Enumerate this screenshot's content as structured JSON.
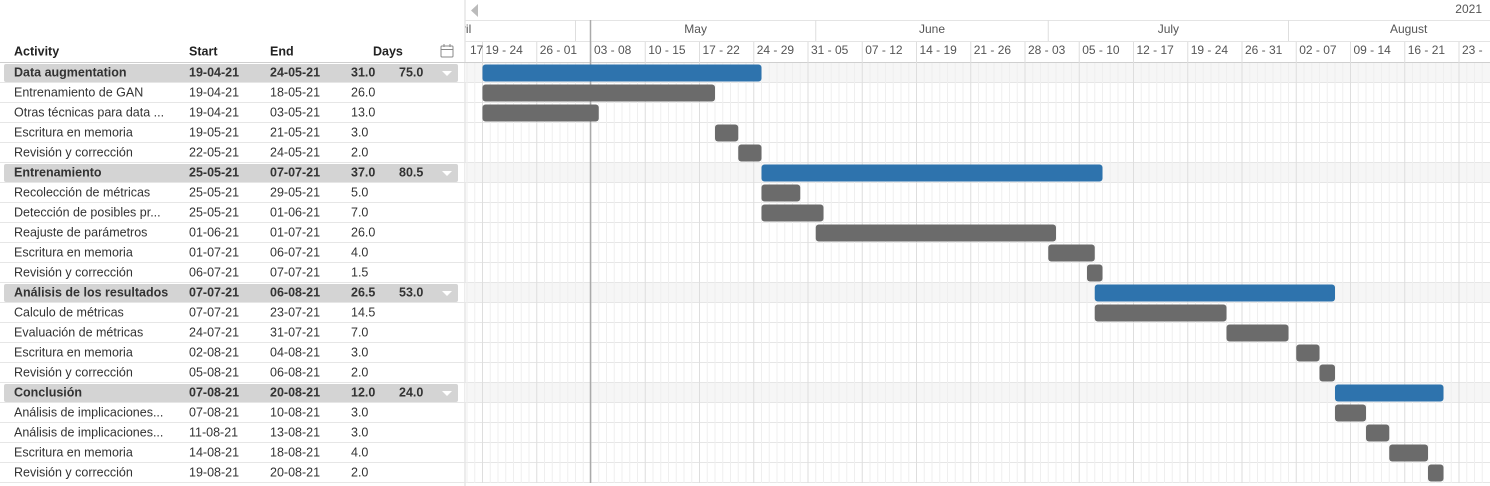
{
  "header": {
    "year": "2021",
    "columns": {
      "activity": "Activity",
      "start": "Start",
      "end": "End",
      "days": "Days"
    },
    "months": [
      "April",
      "May",
      "June",
      "July",
      "August"
    ],
    "weeks": [
      "17",
      "19 - 24",
      "26 - 01",
      "03 - 08",
      "10 - 15",
      "17 - 22",
      "24 - 29",
      "31 - 05",
      "07 - 12",
      "14 - 19",
      "21 - 26",
      "28 - 03",
      "05 - 10",
      "12 - 17",
      "19 - 24",
      "26 - 31",
      "02 - 07",
      "09 - 14",
      "16 - 21",
      "23 -"
    ]
  },
  "groups": [
    {
      "name": "Data augmentation",
      "start": "19-04-21",
      "end": "24-05-21",
      "days": "31.0",
      "total": "75.0",
      "tasks": [
        {
          "name": "Entrenamiento de GAN",
          "start": "19-04-21",
          "end": "18-05-21",
          "days": "26.0"
        },
        {
          "name": "Otras técnicas para data ...",
          "start": "19-04-21",
          "end": "03-05-21",
          "days": "13.0"
        },
        {
          "name": "Escritura en memoria",
          "start": "19-05-21",
          "end": "21-05-21",
          "days": "3.0"
        },
        {
          "name": "Revisión y corrección",
          "start": "22-05-21",
          "end": "24-05-21",
          "days": "2.0"
        }
      ]
    },
    {
      "name": "Entrenamiento",
      "start": "25-05-21",
      "end": "07-07-21",
      "days": "37.0",
      "total": "80.5",
      "tasks": [
        {
          "name": "Recolección de métricas",
          "start": "25-05-21",
          "end": "29-05-21",
          "days": "5.0"
        },
        {
          "name": "Detección de posibles pr...",
          "start": "25-05-21",
          "end": "01-06-21",
          "days": "7.0"
        },
        {
          "name": "Reajuste de parámetros",
          "start": "01-06-21",
          "end": "01-07-21",
          "days": "26.0"
        },
        {
          "name": "Escritura en memoria",
          "start": "01-07-21",
          "end": "06-07-21",
          "days": "4.0"
        },
        {
          "name": "Revisión y corrección",
          "start": "06-07-21",
          "end": "07-07-21",
          "days": "1.5"
        }
      ]
    },
    {
      "name": "Análisis de los resultados",
      "start": "07-07-21",
      "end": "06-08-21",
      "days": "26.5",
      "total": "53.0",
      "tasks": [
        {
          "name": "Calculo de métricas",
          "start": "07-07-21",
          "end": "23-07-21",
          "days": "14.5"
        },
        {
          "name": "Evaluación de métricas",
          "start": "24-07-21",
          "end": "31-07-21",
          "days": "7.0"
        },
        {
          "name": "Escritura en memoria",
          "start": "02-08-21",
          "end": "04-08-21",
          "days": "3.0"
        },
        {
          "name": "Revisión y corrección",
          "start": "05-08-21",
          "end": "06-08-21",
          "days": "2.0"
        }
      ]
    },
    {
      "name": "Conclusión",
      "start": "07-08-21",
      "end": "20-08-21",
      "days": "12.0",
      "total": "24.0",
      "tasks": [
        {
          "name": "Análisis de implicaciones...",
          "start": "07-08-21",
          "end": "10-08-21",
          "days": "3.0"
        },
        {
          "name": "Análisis de implicaciones...",
          "start": "11-08-21",
          "end": "13-08-21",
          "days": "3.0"
        },
        {
          "name": "Escritura en memoria",
          "start": "14-08-21",
          "end": "18-08-21",
          "days": "4.0"
        },
        {
          "name": "Revisión y corrección",
          "start": "19-08-21",
          "end": "20-08-21",
          "days": "2.0"
        }
      ]
    }
  ]
}
